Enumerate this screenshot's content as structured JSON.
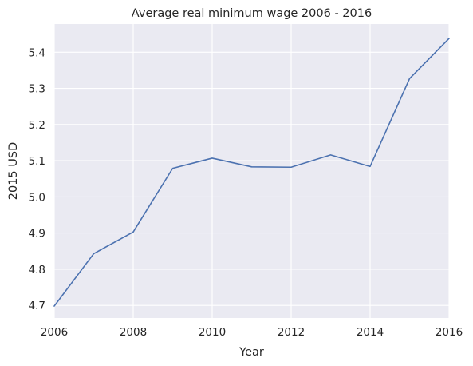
{
  "chart_data": {
    "type": "line",
    "title": "Average real minimum wage 2006 - 2016",
    "xlabel": "Year",
    "ylabel": "2015 USD",
    "xlim": [
      2006,
      2016
    ],
    "ylim": [
      4.665,
      5.478
    ],
    "xticks": [
      2006,
      2008,
      2010,
      2012,
      2014,
      2016
    ],
    "yticks": [
      4.7,
      4.8,
      4.9,
      5.0,
      5.1,
      5.2,
      5.3,
      5.4
    ],
    "grid": true,
    "style": {
      "background": "#eaeaf2",
      "grid_color": "#ffffff",
      "line_color": "#4c72b0"
    },
    "series": [
      {
        "x": [
          2006,
          2007,
          2008,
          2009,
          2010,
          2011,
          2012,
          2013,
          2014,
          2015,
          2016
        ],
        "y": [
          4.698,
          4.843,
          4.903,
          5.079,
          5.107,
          5.083,
          5.082,
          5.116,
          5.084,
          5.327,
          5.438
        ]
      }
    ]
  }
}
